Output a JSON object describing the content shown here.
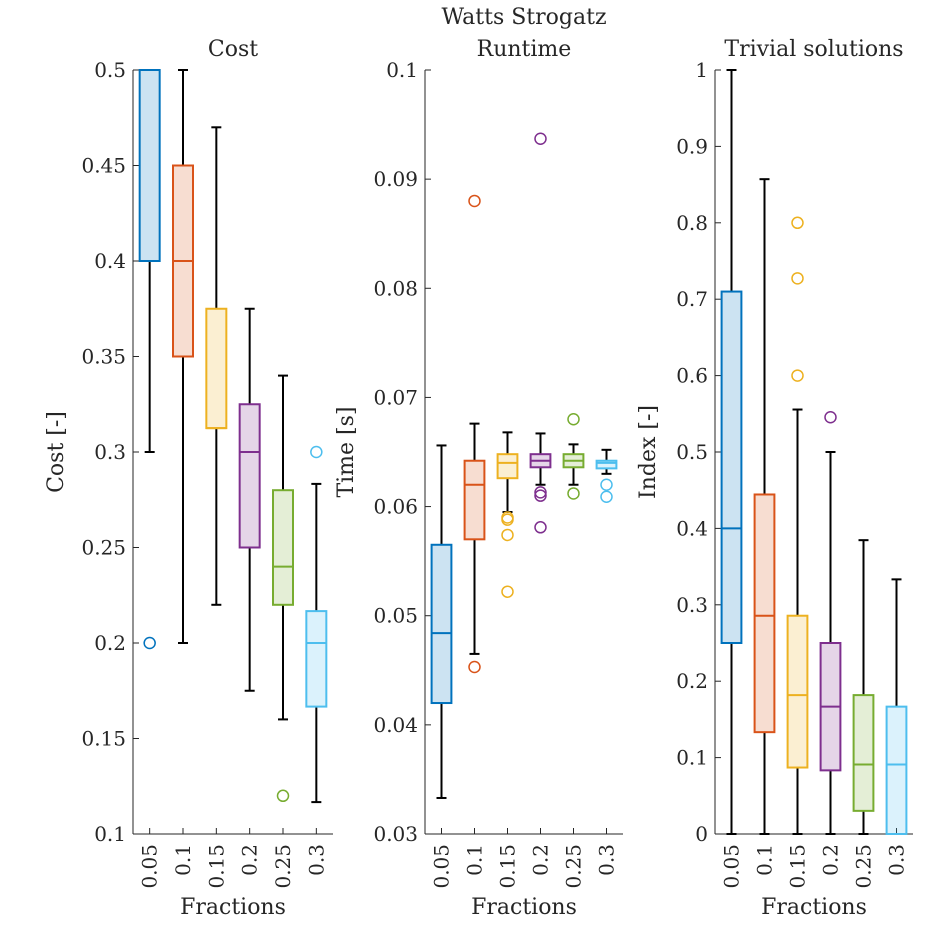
{
  "suptitle": "Watts Strogatz",
  "colors": [
    "#0072BD",
    "#D95319",
    "#EDB120",
    "#7E2F8E",
    "#77AC30",
    "#4DBEEE"
  ],
  "chart_data": [
    {
      "type": "box",
      "title": "Cost",
      "xlabel": "Fractions",
      "ylabel": "Cost [-]",
      "categories": [
        "0.05",
        "0.1",
        "0.15",
        "0.2",
        "0.25",
        "0.3"
      ],
      "ylim": [
        0.1,
        0.5
      ],
      "yticks": [
        "0.1",
        "0.15",
        "0.2",
        "0.25",
        "0.3",
        "0.35",
        "0.4",
        "0.45",
        "0.5"
      ],
      "boxes": [
        {
          "q1": 0.4,
          "median": 0.4,
          "q3": 0.5,
          "whisker_low": 0.3,
          "whisker_high": 0.5,
          "outliers": [
            0.2
          ]
        },
        {
          "q1": 0.35,
          "median": 0.4,
          "q3": 0.45,
          "whisker_low": 0.2,
          "whisker_high": 0.5,
          "outliers": []
        },
        {
          "q1": 0.3125,
          "median": 0.3125,
          "q3": 0.375,
          "whisker_low": 0.22,
          "whisker_high": 0.47,
          "outliers": []
        },
        {
          "q1": 0.25,
          "median": 0.3,
          "q3": 0.325,
          "whisker_low": 0.175,
          "whisker_high": 0.375,
          "outliers": []
        },
        {
          "q1": 0.22,
          "median": 0.24,
          "q3": 0.28,
          "whisker_low": 0.16,
          "whisker_high": 0.34,
          "outliers": [
            0.12
          ]
        },
        {
          "q1": 0.1667,
          "median": 0.2,
          "q3": 0.2167,
          "whisker_low": 0.1167,
          "whisker_high": 0.2833,
          "outliers": [
            0.3
          ]
        }
      ]
    },
    {
      "type": "box",
      "title": "Runtime",
      "xlabel": "",
      "ylabel": "Time [s]",
      "categories": [
        "0.05",
        "0.1",
        "0.15",
        "0.2",
        "0.25",
        "0.3"
      ],
      "ylim": [
        0.03,
        0.1
      ],
      "yticks": [
        "0.03",
        "0.04",
        "0.05",
        "0.06",
        "0.07",
        "0.08",
        "0.09",
        "0.1"
      ],
      "boxes": [
        {
          "q1": 0.042,
          "median": 0.0484,
          "q3": 0.0565,
          "whisker_low": 0.0333,
          "whisker_high": 0.0656,
          "outliers": []
        },
        {
          "q1": 0.057,
          "median": 0.062,
          "q3": 0.0642,
          "whisker_low": 0.0465,
          "whisker_high": 0.0676,
          "outliers": [
            0.0453,
            0.088
          ]
        },
        {
          "q1": 0.0626,
          "median": 0.064,
          "q3": 0.0648,
          "whisker_low": 0.0595,
          "whisker_high": 0.0668,
          "outliers": [
            0.0522,
            0.0574,
            0.0588,
            0.059
          ]
        },
        {
          "q1": 0.0636,
          "median": 0.0642,
          "q3": 0.0648,
          "whisker_low": 0.062,
          "whisker_high": 0.0667,
          "outliers": [
            0.0581,
            0.061,
            0.0613,
            0.0937
          ]
        },
        {
          "q1": 0.0636,
          "median": 0.0642,
          "q3": 0.0648,
          "whisker_low": 0.062,
          "whisker_high": 0.0657,
          "outliers": [
            0.0612,
            0.068
          ]
        },
        {
          "q1": 0.0635,
          "median": 0.064,
          "q3": 0.0642,
          "whisker_low": 0.063,
          "whisker_high": 0.0652,
          "outliers": [
            0.0609,
            0.062
          ]
        }
      ]
    },
    {
      "type": "box",
      "title": "Trivial solutions",
      "xlabel": "Fractions",
      "ylabel": "Index [-]",
      "categories": [
        "0.05",
        "0.1",
        "0.15",
        "0.2",
        "0.25",
        "0.3"
      ],
      "ylim": [
        0,
        1
      ],
      "yticks": [
        "0",
        "0.1",
        "0.2",
        "0.3",
        "0.4",
        "0.5",
        "0.6",
        "0.7",
        "0.8",
        "0.9",
        "1"
      ],
      "boxes": [
        {
          "q1": 0.25,
          "median": 0.4,
          "q3": 0.71,
          "whisker_low": 0.0,
          "whisker_high": 1.0,
          "outliers": []
        },
        {
          "q1": 0.1333,
          "median": 0.2857,
          "q3": 0.4444,
          "whisker_low": 0.0,
          "whisker_high": 0.8571,
          "outliers": []
        },
        {
          "q1": 0.087,
          "median": 0.1818,
          "q3": 0.2857,
          "whisker_low": 0.0,
          "whisker_high": 0.5556,
          "outliers": [
            0.6,
            0.7273,
            0.8
          ]
        },
        {
          "q1": 0.0833,
          "median": 0.1667,
          "q3": 0.25,
          "whisker_low": 0.0,
          "whisker_high": 0.5,
          "outliers": [
            0.5455
          ]
        },
        {
          "q1": 0.0303,
          "median": 0.0909,
          "q3": 0.1818,
          "whisker_low": 0.0,
          "whisker_high": 0.3846,
          "outliers": []
        },
        {
          "q1": 0.0,
          "median": 0.0909,
          "q3": 0.1667,
          "whisker_low": 0.0,
          "whisker_high": 0.3333,
          "outliers": []
        }
      ]
    }
  ]
}
